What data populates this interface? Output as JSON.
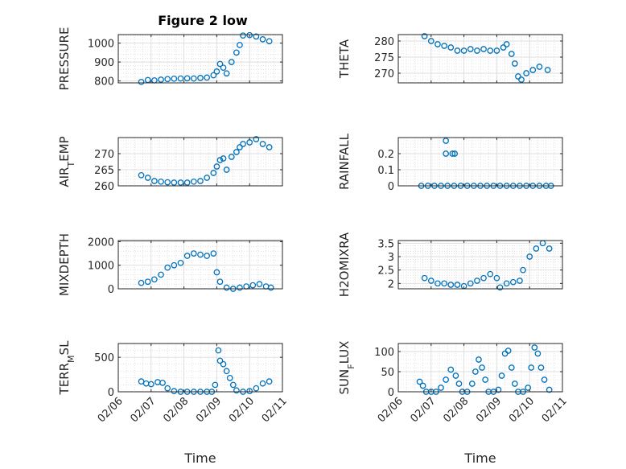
{
  "figure": {
    "title": "Figure 2 low",
    "marker_color": "#0072BD",
    "axis_color": "#262626",
    "grid": "dotted"
  },
  "chart_data": [
    {
      "type": "scatter",
      "title": "Figure 2 low",
      "ylabel": "PRESSURE",
      "yticks": [
        800,
        900,
        1000
      ],
      "ylim": [
        790,
        1045
      ],
      "xlabel": "",
      "xticks": [
        "02/06",
        "02/07",
        "02/08",
        "02/09",
        "02/10",
        "02/11"
      ],
      "show_xticks": false,
      "points": [
        [
          0.7,
          795
        ],
        [
          0.9,
          805
        ],
        [
          1.1,
          803
        ],
        [
          1.3,
          807
        ],
        [
          1.5,
          810
        ],
        [
          1.7,
          812
        ],
        [
          1.9,
          813
        ],
        [
          2.1,
          814
        ],
        [
          2.3,
          813
        ],
        [
          2.5,
          816
        ],
        [
          2.7,
          818
        ],
        [
          2.9,
          830
        ],
        [
          3.0,
          850
        ],
        [
          3.1,
          890
        ],
        [
          3.2,
          870
        ],
        [
          3.3,
          840
        ],
        [
          3.45,
          900
        ],
        [
          3.6,
          950
        ],
        [
          3.7,
          990
        ],
        [
          3.8,
          1040
        ],
        [
          4.0,
          1042
        ],
        [
          4.2,
          1035
        ],
        [
          4.4,
          1020
        ],
        [
          4.6,
          1010
        ]
      ]
    },
    {
      "type": "scatter",
      "ylabel": "THETA",
      "yticks": [
        270,
        275,
        280
      ],
      "ylim": [
        267,
        282
      ],
      "xlabel": "",
      "xticks": [
        "02/06",
        "02/07",
        "02/08",
        "02/09",
        "02/10",
        "02/11"
      ],
      "show_xticks": false,
      "points": [
        [
          0.8,
          281.5
        ],
        [
          1.0,
          280
        ],
        [
          1.2,
          279
        ],
        [
          1.4,
          278.5
        ],
        [
          1.6,
          278
        ],
        [
          1.8,
          277
        ],
        [
          2.0,
          277
        ],
        [
          2.2,
          277.5
        ],
        [
          2.4,
          277
        ],
        [
          2.6,
          277.5
        ],
        [
          2.8,
          277
        ],
        [
          3.0,
          277
        ],
        [
          3.2,
          278
        ],
        [
          3.3,
          279
        ],
        [
          3.45,
          276
        ],
        [
          3.55,
          273
        ],
        [
          3.65,
          269
        ],
        [
          3.75,
          268
        ],
        [
          3.9,
          270
        ],
        [
          4.1,
          271
        ],
        [
          4.3,
          272
        ],
        [
          4.55,
          271
        ]
      ]
    },
    {
      "type": "scatter",
      "ylabel": "AIR_TEMP",
      "yticks": [
        260,
        265,
        270
      ],
      "ylim": [
        260,
        275
      ],
      "xlabel": "",
      "xticks": [
        "02/06",
        "02/07",
        "02/08",
        "02/09",
        "02/10",
        "02/11"
      ],
      "show_xticks": false,
      "points": [
        [
          0.7,
          263.3
        ],
        [
          0.9,
          262.5
        ],
        [
          1.1,
          261.5
        ],
        [
          1.3,
          261.3
        ],
        [
          1.5,
          261.1
        ],
        [
          1.7,
          261
        ],
        [
          1.9,
          261
        ],
        [
          2.1,
          261
        ],
        [
          2.3,
          261.3
        ],
        [
          2.5,
          261.5
        ],
        [
          2.7,
          262.5
        ],
        [
          2.9,
          264
        ],
        [
          3.0,
          266
        ],
        [
          3.1,
          268
        ],
        [
          3.2,
          268.5
        ],
        [
          3.3,
          265
        ],
        [
          3.45,
          269
        ],
        [
          3.6,
          270.5
        ],
        [
          3.7,
          272
        ],
        [
          3.8,
          273
        ],
        [
          4.0,
          273.5
        ],
        [
          4.2,
          274.5
        ],
        [
          4.4,
          273
        ],
        [
          4.6,
          272
        ]
      ]
    },
    {
      "type": "scatter",
      "ylabel": "RAINFALL",
      "yticks": [
        0,
        0.1,
        0.2
      ],
      "ytick_labels": [
        "0",
        "0.1",
        "0.2"
      ],
      "ylim": [
        0,
        0.3
      ],
      "xlabel": "",
      "xticks": [
        "02/06",
        "02/07",
        "02/08",
        "02/09",
        "02/10",
        "02/11"
      ],
      "show_xticks": false,
      "points": [
        [
          0.7,
          0
        ],
        [
          0.9,
          0
        ],
        [
          1.1,
          0
        ],
        [
          1.3,
          0
        ],
        [
          1.5,
          0
        ],
        [
          1.7,
          0
        ],
        [
          1.9,
          0
        ],
        [
          2.1,
          0
        ],
        [
          2.3,
          0
        ],
        [
          2.5,
          0
        ],
        [
          2.7,
          0
        ],
        [
          2.9,
          0
        ],
        [
          3.1,
          0
        ],
        [
          3.3,
          0
        ],
        [
          3.5,
          0
        ],
        [
          3.7,
          0
        ],
        [
          3.9,
          0
        ],
        [
          4.1,
          0
        ],
        [
          4.3,
          0
        ],
        [
          4.5,
          0
        ],
        [
          4.65,
          0
        ],
        [
          1.45,
          0.28
        ],
        [
          1.45,
          0.2
        ],
        [
          1.65,
          0.2
        ],
        [
          1.72,
          0.2
        ]
      ]
    },
    {
      "type": "scatter",
      "ylabel": "MIXDEPTH",
      "yticks": [
        0,
        1000,
        2000
      ],
      "ylim": [
        0,
        2050
      ],
      "xlabel": "",
      "xticks": [
        "02/06",
        "02/07",
        "02/08",
        "02/09",
        "02/10",
        "02/11"
      ],
      "show_xticks": false,
      "points": [
        [
          0.7,
          250
        ],
        [
          0.9,
          300
        ],
        [
          1.1,
          400
        ],
        [
          1.3,
          600
        ],
        [
          1.5,
          900
        ],
        [
          1.7,
          1000
        ],
        [
          1.9,
          1100
        ],
        [
          2.1,
          1400
        ],
        [
          2.3,
          1500
        ],
        [
          2.5,
          1450
        ],
        [
          2.7,
          1400
        ],
        [
          2.9,
          1500
        ],
        [
          3.0,
          700
        ],
        [
          3.1,
          300
        ],
        [
          3.3,
          50
        ],
        [
          3.5,
          0
        ],
        [
          3.7,
          50
        ],
        [
          3.9,
          100
        ],
        [
          4.1,
          150
        ],
        [
          4.3,
          200
        ],
        [
          4.5,
          100
        ],
        [
          4.65,
          50
        ]
      ]
    },
    {
      "type": "scatter",
      "ylabel": "H2OMIXRA",
      "yticks": [
        2,
        2.5,
        3,
        3.5
      ],
      "ytick_labels": [
        "2",
        "2.5",
        "3",
        "3.5"
      ],
      "ylim": [
        1.8,
        3.6
      ],
      "xlabel": "",
      "xticks": [
        "02/06",
        "02/07",
        "02/08",
        "02/09",
        "02/10",
        "02/11"
      ],
      "show_xticks": false,
      "points": [
        [
          0.8,
          2.2
        ],
        [
          1.0,
          2.1
        ],
        [
          1.2,
          2.0
        ],
        [
          1.4,
          2.0
        ],
        [
          1.6,
          1.95
        ],
        [
          1.8,
          1.95
        ],
        [
          2.0,
          1.9
        ],
        [
          2.2,
          2.0
        ],
        [
          2.4,
          2.1
        ],
        [
          2.6,
          2.2
        ],
        [
          2.8,
          2.35
        ],
        [
          3.0,
          2.2
        ],
        [
          3.1,
          1.85
        ],
        [
          3.3,
          2.0
        ],
        [
          3.5,
          2.05
        ],
        [
          3.7,
          2.1
        ],
        [
          3.8,
          2.5
        ],
        [
          4.0,
          3.0
        ],
        [
          4.2,
          3.3
        ],
        [
          4.4,
          3.5
        ],
        [
          4.6,
          3.3
        ]
      ]
    },
    {
      "type": "scatter",
      "ylabel": "TERR_MSL",
      "yticks": [
        0,
        500
      ],
      "ylim": [
        0,
        700
      ],
      "xlabel": "Time",
      "xticks": [
        "02/06",
        "02/07",
        "02/08",
        "02/09",
        "02/10",
        "02/11"
      ],
      "show_xticks": true,
      "points": [
        [
          0.7,
          150
        ],
        [
          0.85,
          120
        ],
        [
          1.0,
          110
        ],
        [
          1.2,
          140
        ],
        [
          1.35,
          130
        ],
        [
          1.5,
          50
        ],
        [
          1.7,
          10
        ],
        [
          1.9,
          0
        ],
        [
          2.1,
          0
        ],
        [
          2.3,
          0
        ],
        [
          2.5,
          0
        ],
        [
          2.7,
          0
        ],
        [
          2.85,
          0
        ],
        [
          2.95,
          100
        ],
        [
          3.05,
          600
        ],
        [
          3.1,
          450
        ],
        [
          3.2,
          400
        ],
        [
          3.3,
          300
        ],
        [
          3.4,
          200
        ],
        [
          3.5,
          100
        ],
        [
          3.6,
          20
        ],
        [
          3.8,
          0
        ],
        [
          4.0,
          10
        ],
        [
          4.2,
          50
        ],
        [
          4.4,
          120
        ],
        [
          4.6,
          150
        ]
      ]
    },
    {
      "type": "scatter",
      "ylabel": "SUN_FLUX",
      "yticks": [
        0,
        50,
        100
      ],
      "ylim": [
        0,
        120
      ],
      "xlabel": "Time",
      "xticks": [
        "02/06",
        "02/07",
        "02/08",
        "02/09",
        "02/10",
        "02/11"
      ],
      "show_xticks": true,
      "points": [
        [
          0.65,
          25
        ],
        [
          0.75,
          15
        ],
        [
          0.85,
          0
        ],
        [
          1.0,
          0
        ],
        [
          1.15,
          0
        ],
        [
          1.3,
          10
        ],
        [
          1.45,
          30
        ],
        [
          1.6,
          55
        ],
        [
          1.75,
          40
        ],
        [
          1.85,
          20
        ],
        [
          1.95,
          0
        ],
        [
          2.1,
          0
        ],
        [
          2.25,
          20
        ],
        [
          2.35,
          50
        ],
        [
          2.45,
          80
        ],
        [
          2.55,
          60
        ],
        [
          2.65,
          30
        ],
        [
          2.75,
          0
        ],
        [
          2.9,
          0
        ],
        [
          3.05,
          5
        ],
        [
          3.15,
          40
        ],
        [
          3.25,
          95
        ],
        [
          3.35,
          102
        ],
        [
          3.45,
          60
        ],
        [
          3.55,
          20
        ],
        [
          3.65,
          0
        ],
        [
          3.8,
          0
        ],
        [
          3.95,
          10
        ],
        [
          4.05,
          60
        ],
        [
          4.15,
          110
        ],
        [
          4.25,
          95
        ],
        [
          4.35,
          60
        ],
        [
          4.45,
          30
        ],
        [
          4.6,
          5
        ]
      ]
    }
  ]
}
